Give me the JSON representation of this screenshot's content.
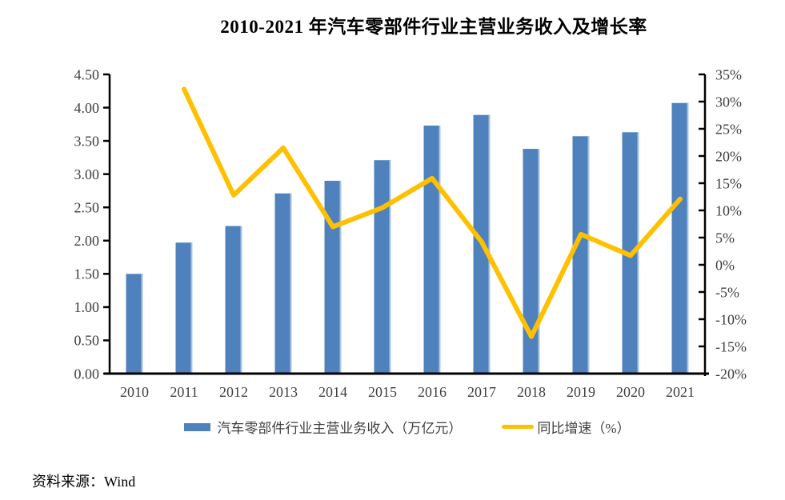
{
  "title": "2010-2021 年汽车零部件行业主营业务收入及增长率",
  "source": "资料来源：Wind",
  "legend": [
    {
      "label": "汽车零部件行业主营业务收入（万亿元）",
      "color": "#4F81BD",
      "type": "bar"
    },
    {
      "label": "同比增速（%）",
      "color": "#FFC000",
      "type": "line"
    }
  ],
  "colors": {
    "bar": "#4F81BD",
    "bar_edge_highlight": "#A9C4E2",
    "line": "#FFC000",
    "axis": "#000000",
    "tick_label": "#3f3f3f"
  },
  "chart_data": {
    "type": "bar+line combo",
    "categories": [
      "2010",
      "2011",
      "2012",
      "2013",
      "2014",
      "2015",
      "2016",
      "2017",
      "2018",
      "2019",
      "2020",
      "2021"
    ],
    "series": [
      {
        "name": "汽车零部件行业主营业务收入（万亿元）",
        "type": "bar",
        "axis": "left",
        "values": [
          1.5,
          1.97,
          2.22,
          2.71,
          2.9,
          3.21,
          3.73,
          3.89,
          3.38,
          3.57,
          3.63,
          4.07
        ]
      },
      {
        "name": "同比增速（%）",
        "type": "line",
        "axis": "right",
        "values": [
          null,
          32.3,
          12.8,
          21.5,
          7.0,
          10.5,
          15.9,
          4.2,
          -13.2,
          5.6,
          1.7,
          12.1
        ]
      }
    ],
    "left_axis": {
      "min": 0,
      "max": 4.5,
      "step": 0.5,
      "tick_labels": [
        "0.00",
        "0.50",
        "1.00",
        "1.50",
        "2.00",
        "2.50",
        "3.00",
        "3.50",
        "4.00",
        "4.50"
      ]
    },
    "right_axis": {
      "min": -20,
      "max": 35,
      "step": 5,
      "tick_labels": [
        "-20%",
        "-15%",
        "-10%",
        "-5%",
        "0%",
        "5%",
        "10%",
        "15%",
        "20%",
        "25%",
        "30%",
        "35%"
      ]
    },
    "grid": false,
    "legend_position": "bottom"
  }
}
